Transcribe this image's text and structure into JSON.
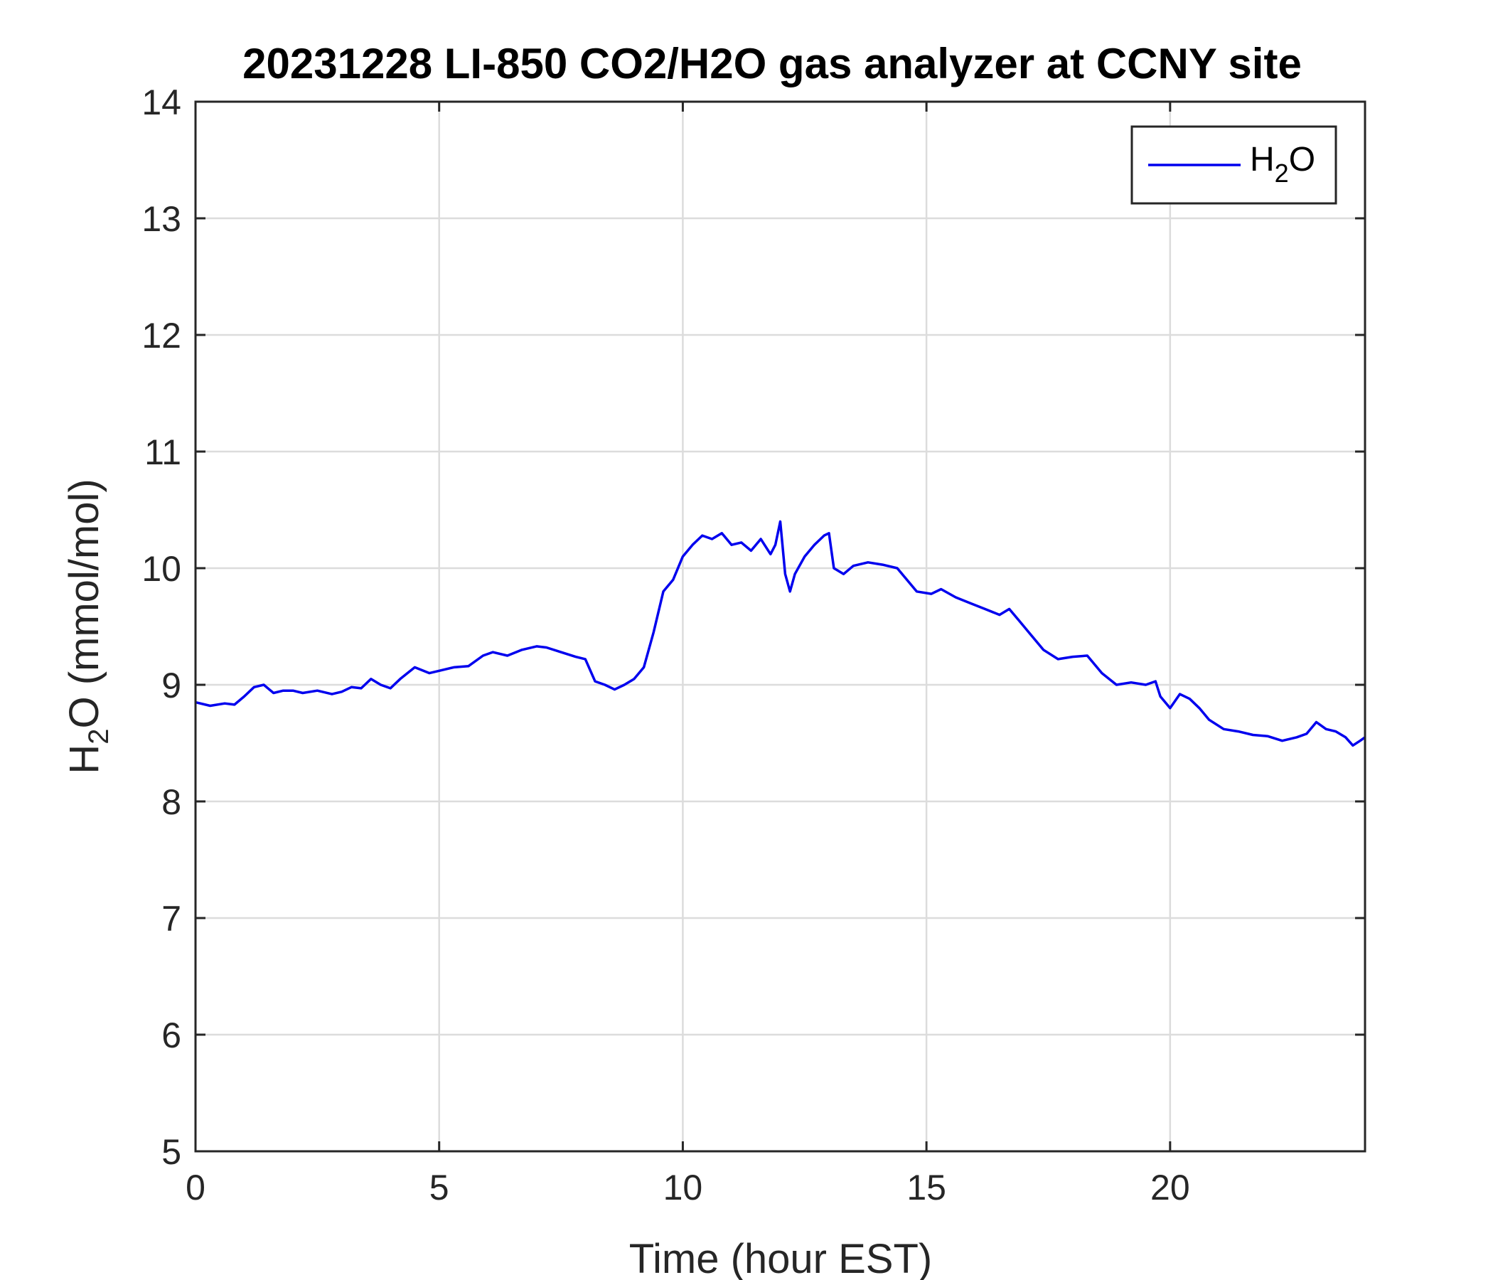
{
  "chart_data": {
    "type": "line",
    "title": "20231228 LI-850 CO2/H2O gas analyzer at CCNY site",
    "xlabel": "Time (hour EST)",
    "ylabel": {
      "main": "H",
      "sub": "2",
      "rest": "O (mmol/mol)"
    },
    "xlim": [
      0,
      24
    ],
    "ylim": [
      5,
      14
    ],
    "xticks": [
      0,
      5,
      10,
      15,
      20
    ],
    "yticks": [
      5,
      6,
      7,
      8,
      9,
      10,
      11,
      12,
      13,
      14
    ],
    "grid": true,
    "legend": {
      "placement": "top-right",
      "label_main": "H",
      "label_sub": "2",
      "label_rest": "O"
    },
    "series": [
      {
        "name": "H2O",
        "color": "#0000ee",
        "x": [
          0,
          0.3,
          0.6,
          0.8,
          1.0,
          1.2,
          1.4,
          1.6,
          1.8,
          2.0,
          2.2,
          2.5,
          2.8,
          3.0,
          3.2,
          3.4,
          3.6,
          3.8,
          4.0,
          4.2,
          4.5,
          4.8,
          5.0,
          5.3,
          5.6,
          5.9,
          6.1,
          6.4,
          6.7,
          7.0,
          7.2,
          7.5,
          7.8,
          8.0,
          8.2,
          8.4,
          8.6,
          8.8,
          9.0,
          9.2,
          9.4,
          9.6,
          9.8,
          10.0,
          10.2,
          10.4,
          10.6,
          10.8,
          11.0,
          11.2,
          11.4,
          11.6,
          11.8,
          11.9,
          12.0,
          12.1,
          12.2,
          12.3,
          12.5,
          12.7,
          12.9,
          13.0,
          13.1,
          13.3,
          13.5,
          13.8,
          14.1,
          14.4,
          14.6,
          14.8,
          15.1,
          15.3,
          15.6,
          15.9,
          16.2,
          16.5,
          16.7,
          16.9,
          17.1,
          17.4,
          17.7,
          18.0,
          18.3,
          18.6,
          18.9,
          19.2,
          19.5,
          19.7,
          19.8,
          20.0,
          20.2,
          20.4,
          20.6,
          20.8,
          21.1,
          21.4,
          21.7,
          22.0,
          22.3,
          22.6,
          22.8,
          23.0,
          23.2,
          23.4,
          23.6,
          23.75,
          23.9,
          24.0
        ],
        "y": [
          8.85,
          8.82,
          8.84,
          8.83,
          8.9,
          8.98,
          9.0,
          8.93,
          8.95,
          8.95,
          8.93,
          8.95,
          8.92,
          8.94,
          8.98,
          8.97,
          9.05,
          9.0,
          8.97,
          9.05,
          9.15,
          9.1,
          9.12,
          9.15,
          9.16,
          9.25,
          9.28,
          9.25,
          9.3,
          9.33,
          9.32,
          9.28,
          9.24,
          9.22,
          9.03,
          9.0,
          8.96,
          9.0,
          9.05,
          9.15,
          9.45,
          9.8,
          9.9,
          10.1,
          10.2,
          10.28,
          10.25,
          10.3,
          10.2,
          10.22,
          10.15,
          10.25,
          10.12,
          10.2,
          10.4,
          9.95,
          9.8,
          9.95,
          10.1,
          10.2,
          10.28,
          10.3,
          10.0,
          9.95,
          10.02,
          10.05,
          10.03,
          10.0,
          9.9,
          9.8,
          9.78,
          9.82,
          9.75,
          9.7,
          9.65,
          9.6,
          9.65,
          9.55,
          9.45,
          9.3,
          9.22,
          9.24,
          9.25,
          9.1,
          9.0,
          9.02,
          9.0,
          9.03,
          8.9,
          8.8,
          8.92,
          8.88,
          8.8,
          8.7,
          8.62,
          8.6,
          8.57,
          8.56,
          8.52,
          8.55,
          8.58,
          8.68,
          8.62,
          8.6,
          8.55,
          8.48,
          8.52,
          8.55
        ]
      }
    ]
  }
}
